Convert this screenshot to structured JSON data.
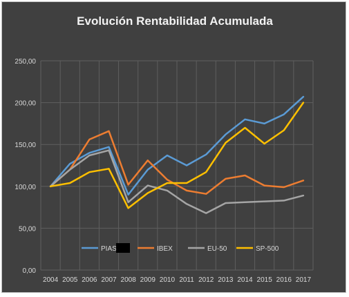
{
  "chart_data": {
    "type": "line",
    "title": "Evolución Rentabilidad Acumulada",
    "xlabel": "",
    "ylabel": "",
    "ylim": [
      0,
      250
    ],
    "yticks": [
      "0,00",
      "50,00",
      "100,00",
      "150,00",
      "200,00",
      "250,00"
    ],
    "categories": [
      "2004",
      "2005",
      "2006",
      "2007",
      "2008",
      "2009",
      "2010",
      "2011",
      "2012",
      "2013",
      "2014",
      "2015",
      "2016",
      "2017"
    ],
    "grid": true,
    "legend_position": "bottom-inside",
    "series": [
      {
        "name": "PIAS",
        "color": "#5b9bd5",
        "values": [
          100,
          127,
          140,
          147,
          90,
          120,
          137,
          125,
          138,
          162,
          180,
          175,
          186,
          207
        ]
      },
      {
        "name": "IBEX",
        "color": "#ed7d31",
        "values": [
          100,
          120,
          156,
          166,
          102,
          131,
          108,
          95,
          91,
          109,
          113,
          101,
          99,
          107
        ]
      },
      {
        "name": "EU-50",
        "color": "#a5a5a5",
        "values": [
          100,
          120,
          137,
          143,
          81,
          101,
          95,
          79,
          68,
          80,
          81,
          82,
          83,
          89
        ]
      },
      {
        "name": "SP-500",
        "color": "#ffc000",
        "values": [
          100,
          104,
          117,
          121,
          74,
          92,
          104,
          104,
          117,
          152,
          170,
          151,
          167,
          200
        ]
      }
    ]
  }
}
